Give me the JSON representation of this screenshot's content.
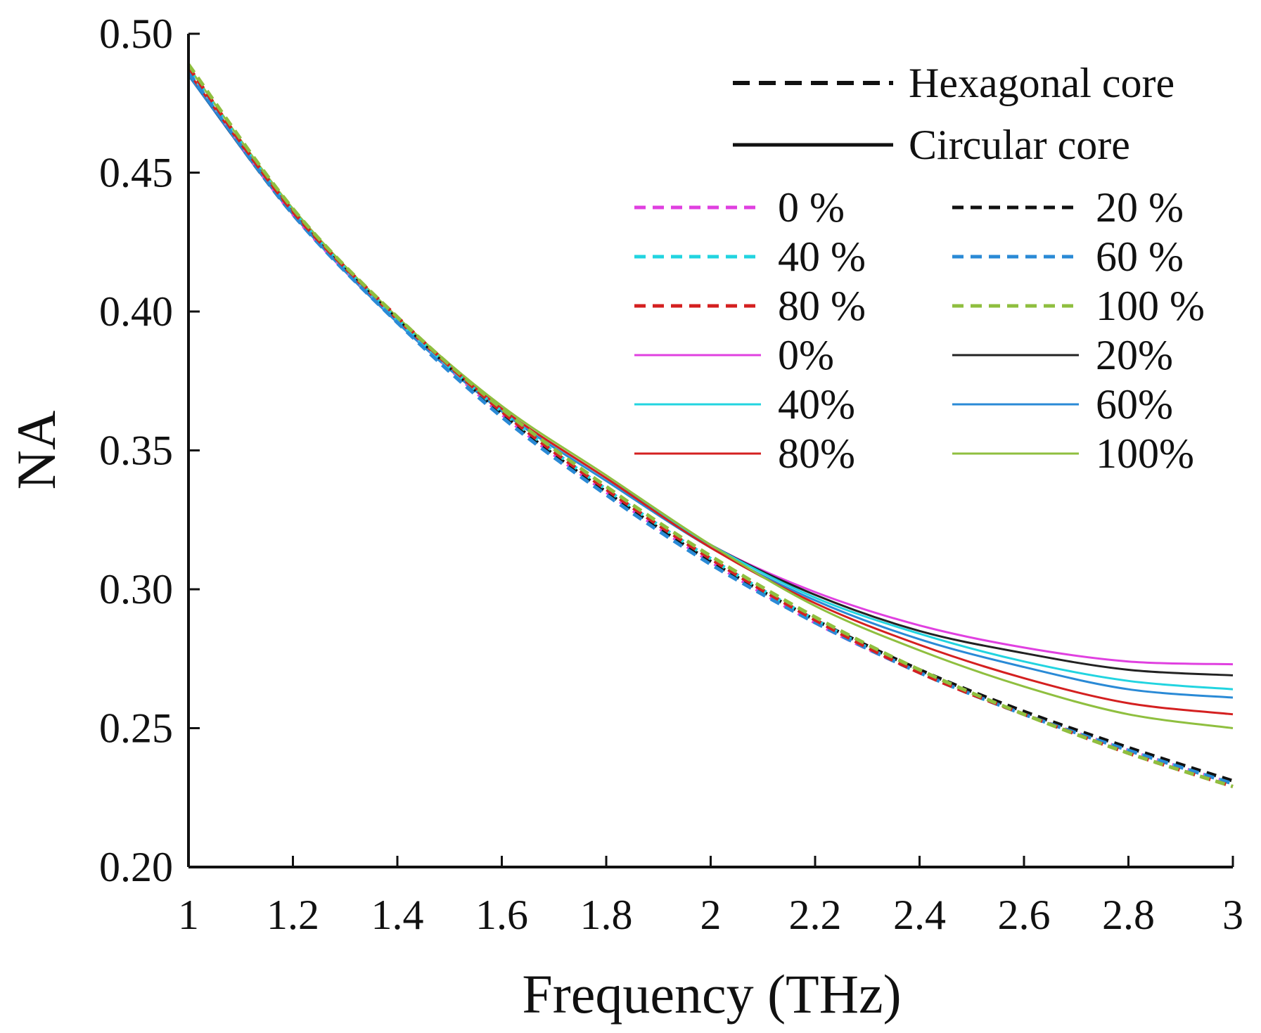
{
  "chart_data": {
    "type": "line",
    "title": "",
    "xlabel": "Frequency (THz)",
    "ylabel": "NA",
    "xlim": [
      1,
      3
    ],
    "ylim": [
      0.2,
      0.5
    ],
    "xticks": [
      1,
      1.2,
      1.4,
      1.6,
      1.8,
      2,
      2.2,
      2.4,
      2.6,
      2.8,
      3
    ],
    "xtick_labels": [
      "1",
      "1.2",
      "1.4",
      "1.6",
      "1.8",
      "2",
      "2.2",
      "2.4",
      "2.6",
      "2.8",
      "3"
    ],
    "yticks": [
      0.2,
      0.25,
      0.3,
      0.35,
      0.4,
      0.45,
      0.5
    ],
    "ytick_labels": [
      "0.20",
      "0.25",
      "0.30",
      "0.35",
      "0.40",
      "0.45",
      "0.50"
    ],
    "grid": false,
    "legend_position": "top-right",
    "style_legend": [
      {
        "label": "Hexagonal core",
        "dash": "dashed",
        "color": "#111111"
      },
      {
        "label": "Circular core",
        "dash": "solid",
        "color": "#111111"
      }
    ],
    "x": [
      1.0,
      1.2,
      1.4,
      1.6,
      1.8,
      2.0,
      2.2,
      2.4,
      2.6,
      2.8,
      3.0
    ],
    "series": [
      {
        "name": "Hexagonal 0 %",
        "legend_label": "0 %",
        "core": "hexagonal",
        "dash": "dashed",
        "color": "#e040e0",
        "values": [
          0.487,
          0.435,
          0.397,
          0.363,
          0.335,
          0.31,
          0.288,
          0.27,
          0.255,
          0.242,
          0.23
        ]
      },
      {
        "name": "Hexagonal 20 %",
        "legend_label": "20 %",
        "core": "hexagonal",
        "dash": "dashed",
        "color": "#111111",
        "values": [
          0.486,
          0.435,
          0.397,
          0.363,
          0.335,
          0.31,
          0.289,
          0.271,
          0.256,
          0.243,
          0.231
        ]
      },
      {
        "name": "Hexagonal 40 %",
        "legend_label": "40 %",
        "core": "hexagonal",
        "dash": "dashed",
        "color": "#22d4e0",
        "values": [
          0.487,
          0.436,
          0.397,
          0.364,
          0.336,
          0.311,
          0.289,
          0.27,
          0.255,
          0.242,
          0.23
        ]
      },
      {
        "name": "Hexagonal 60 %",
        "legend_label": "60 %",
        "core": "hexagonal",
        "dash": "dashed",
        "color": "#2a8ad6",
        "values": [
          0.486,
          0.435,
          0.396,
          0.362,
          0.334,
          0.309,
          0.288,
          0.27,
          0.255,
          0.242,
          0.23
        ]
      },
      {
        "name": "Hexagonal 80 %",
        "legend_label": "80 %",
        "core": "hexagonal",
        "dash": "dashed",
        "color": "#d42020",
        "values": [
          0.488,
          0.436,
          0.398,
          0.364,
          0.336,
          0.311,
          0.289,
          0.27,
          0.255,
          0.241,
          0.229
        ]
      },
      {
        "name": "Hexagonal 100 %",
        "legend_label": "100 %",
        "core": "hexagonal",
        "dash": "dashed",
        "color": "#8fbf3f",
        "values": [
          0.489,
          0.437,
          0.398,
          0.365,
          0.337,
          0.312,
          0.29,
          0.271,
          0.255,
          0.241,
          0.229
        ]
      },
      {
        "name": "Circular 0%",
        "legend_label": "0%",
        "core": "circular",
        "dash": "solid",
        "color": "#e040e0",
        "values": [
          0.485,
          0.435,
          0.397,
          0.365,
          0.34,
          0.316,
          0.299,
          0.287,
          0.279,
          0.274,
          0.273
        ]
      },
      {
        "name": "Circular 20%",
        "legend_label": "20%",
        "core": "circular",
        "dash": "solid",
        "color": "#222222",
        "values": [
          0.485,
          0.435,
          0.397,
          0.365,
          0.34,
          0.316,
          0.298,
          0.285,
          0.277,
          0.271,
          0.269
        ]
      },
      {
        "name": "Circular 40%",
        "legend_label": "40%",
        "core": "circular",
        "dash": "solid",
        "color": "#22d4e0",
        "values": [
          0.486,
          0.436,
          0.397,
          0.365,
          0.34,
          0.316,
          0.297,
          0.284,
          0.274,
          0.267,
          0.264
        ]
      },
      {
        "name": "Circular 60%",
        "legend_label": "60%",
        "core": "circular",
        "dash": "solid",
        "color": "#2a8ad6",
        "values": [
          0.485,
          0.435,
          0.396,
          0.364,
          0.339,
          0.315,
          0.296,
          0.282,
          0.272,
          0.264,
          0.261
        ]
      },
      {
        "name": "Circular 80%",
        "legend_label": "80%",
        "core": "circular",
        "dash": "solid",
        "color": "#d42020",
        "values": [
          0.486,
          0.436,
          0.397,
          0.365,
          0.34,
          0.315,
          0.295,
          0.28,
          0.268,
          0.259,
          0.255
        ]
      },
      {
        "name": "Circular 100%",
        "legend_label": "100%",
        "core": "circular",
        "dash": "solid",
        "color": "#8fbf3f",
        "values": [
          0.488,
          0.437,
          0.398,
          0.366,
          0.341,
          0.316,
          0.294,
          0.278,
          0.265,
          0.255,
          0.25
        ]
      }
    ]
  }
}
